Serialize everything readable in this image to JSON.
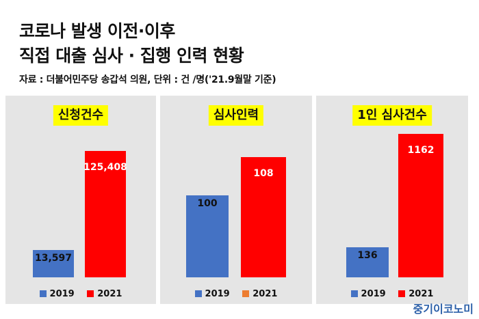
{
  "title": {
    "line1": "코로나 발생 이전·이후",
    "line2": "직접 대출 심사 · 집행 인력 현황"
  },
  "source": "자료 : 더불어민주당 송갑석 의원, 단위 : 건 /명('21.9월말 기준)",
  "watermark": "중기이코노미",
  "colors": {
    "series_2019": "#4472c4",
    "series_2021": "#ff0000",
    "legend_2021_panel2": "#ed7d31",
    "panel_background": "#e5e5e5",
    "title_highlight": "#ffff00"
  },
  "chart_data": [
    {
      "type": "bar",
      "title": "신청건수",
      "categories": [
        "2019",
        "2021"
      ],
      "values": [
        13597,
        125408
      ],
      "value_labels": [
        "13,597",
        "125,408"
      ],
      "legend": [
        "2019",
        "2021"
      ]
    },
    {
      "type": "bar",
      "title": "심사인력",
      "categories": [
        "2019",
        "2021"
      ],
      "values": [
        100,
        108
      ],
      "value_labels": [
        "100",
        "108"
      ],
      "legend": [
        "2019",
        "2021"
      ]
    },
    {
      "type": "bar",
      "title": "1인 심사건수",
      "categories": [
        "2019",
        "2021"
      ],
      "values": [
        136,
        1162
      ],
      "value_labels": [
        "136",
        "1162"
      ],
      "legend": [
        "2019",
        "2021"
      ]
    }
  ]
}
